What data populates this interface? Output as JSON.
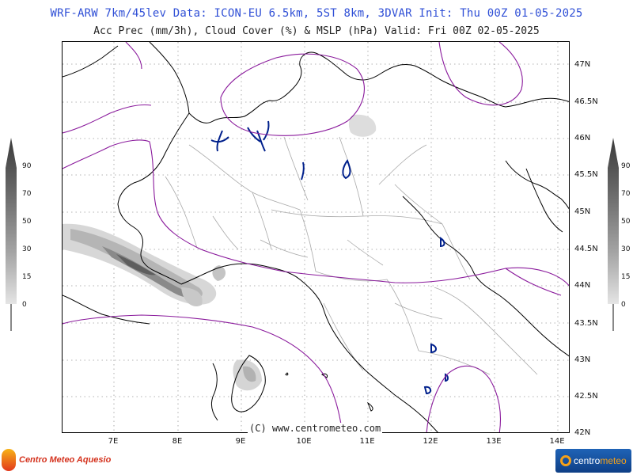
{
  "header": {
    "line1": "WRF-ARW 7km/45lev  Data: ICON-EU 6.5km, 5ST 8km, 3DVAR  Init: Thu 00Z 01-05-2025",
    "line2": "Acc Prec (mm/3h), Cloud Cover (%) & MSLP (hPa)  Valid: Fri 00Z 02-05-2025"
  },
  "map": {
    "lat_labels": [
      "47N",
      "46.5N",
      "46N",
      "45.5N",
      "45N",
      "44.5N",
      "44N",
      "43.5N",
      "43N",
      "42.5N",
      "42N"
    ],
    "lon_labels": [
      "7E",
      "8E",
      "9E",
      "10E",
      "11E",
      "12E",
      "13E",
      "14E"
    ],
    "copyright": "(C) www.centrometeo.com",
    "colors": {
      "isobar": "#8a1a9c",
      "borders": "#000000",
      "regions": "#a9a9a9",
      "lakes": "#00208c",
      "grid": "#9a9a9a"
    }
  },
  "cloud_scale": {
    "left_labels": [
      "90",
      "70",
      "50",
      "30",
      "15",
      "0"
    ],
    "right_labels": [
      "90",
      "70",
      "50",
      "30",
      "15",
      "0"
    ]
  },
  "logos": {
    "left_text": "Centro Meteo Aquesio",
    "right_text_a": "centro",
    "right_text_b": "meteo"
  }
}
